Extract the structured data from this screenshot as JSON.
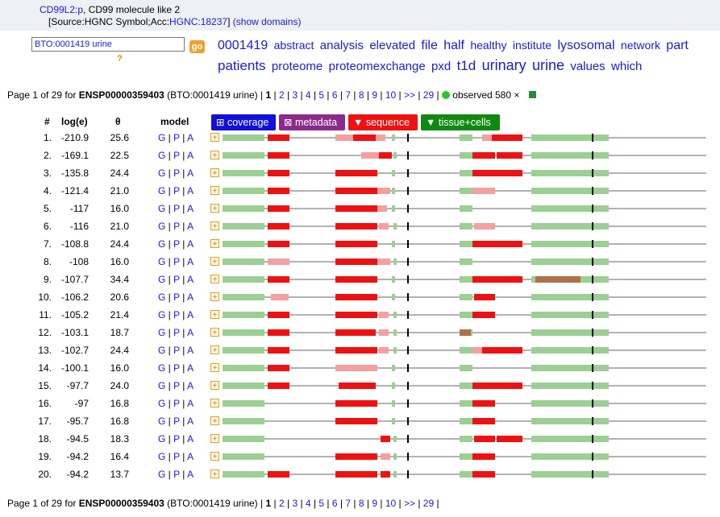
{
  "header": {
    "gene_link": "CD99L2:p",
    "gene_desc": ", CD99 molecule like 2",
    "source_prefix": "[Source:HGNC Symbol;Acc:",
    "source_acc": "HGNC:18237",
    "source_suffix": "]",
    "show_domains": "(show domains)"
  },
  "search": {
    "value": "BTO:0001419 urine",
    "go_label": "go",
    "help": "?"
  },
  "tag_cloud": [
    "0001419",
    "abstract",
    "analysis",
    "elevated",
    "file",
    "half",
    "healthy",
    "institute",
    "lysosomal",
    "network",
    "part",
    "patients",
    "proteome",
    "proteomexchange",
    "pxd",
    "t1d",
    "urinary",
    "urine",
    "values",
    "which"
  ],
  "pager": {
    "prefix": "Page 1 of 29 for ",
    "protein": "ENSP00000359403",
    "context": " (BTO:0001419 urine) | ",
    "current": "1",
    "pages": [
      "2",
      "3",
      "4",
      "5",
      "6",
      "7",
      "8",
      "9",
      "10",
      ">>",
      "29"
    ],
    "observed": "observed 580 ×"
  },
  "columns": {
    "num": "#",
    "log": "log(e)",
    "theta": "θ",
    "model": "model"
  },
  "tabs": {
    "coverage": "⊞ coverage",
    "metadata": "⊠ metadata",
    "sequence": "▼ sequence",
    "tissue": "▼ tissue+cells"
  },
  "model_links": {
    "g": "G",
    "p": "P",
    "a": "A",
    "sep": " | "
  },
  "colors": {
    "red": "#ee1111",
    "pink": "#f4a0a0",
    "green": "#9ccf94",
    "gray": "#666666",
    "brown": "#b0704a"
  },
  "rows": [
    {
      "n": "1.",
      "log": "-210.9",
      "theta": "25.6"
    },
    {
      "n": "2.",
      "log": "-169.1",
      "theta": "22.5"
    },
    {
      "n": "3.",
      "log": "-135.8",
      "theta": "24.4"
    },
    {
      "n": "4.",
      "log": "-121.4",
      "theta": "21.0"
    },
    {
      "n": "5.",
      "log": "-117",
      "theta": "16.0"
    },
    {
      "n": "6.",
      "log": "-116",
      "theta": "21.0"
    },
    {
      "n": "7.",
      "log": "-108.8",
      "theta": "24.4"
    },
    {
      "n": "8.",
      "log": "-108",
      "theta": "16.0"
    },
    {
      "n": "9.",
      "log": "-107.7",
      "theta": "34.4"
    },
    {
      "n": "10.",
      "log": "-106.2",
      "theta": "20.6"
    },
    {
      "n": "11.",
      "log": "-105.2",
      "theta": "21.4"
    },
    {
      "n": "12.",
      "log": "-103.1",
      "theta": "18.7"
    },
    {
      "n": "13.",
      "log": "-102.7",
      "theta": "24.4"
    },
    {
      "n": "14.",
      "log": "-100.1",
      "theta": "16.0"
    },
    {
      "n": "15.",
      "log": "-97.7",
      "theta": "24.0"
    },
    {
      "n": "16.",
      "log": "-97",
      "theta": "16.8"
    },
    {
      "n": "17.",
      "log": "-95.7",
      "theta": "16.8"
    },
    {
      "n": "18.",
      "log": "-94.5",
      "theta": "18.3"
    },
    {
      "n": "19.",
      "log": "-94.2",
      "theta": "16.4"
    },
    {
      "n": "20.",
      "log": "-94.2",
      "theta": "13.7"
    }
  ]
}
